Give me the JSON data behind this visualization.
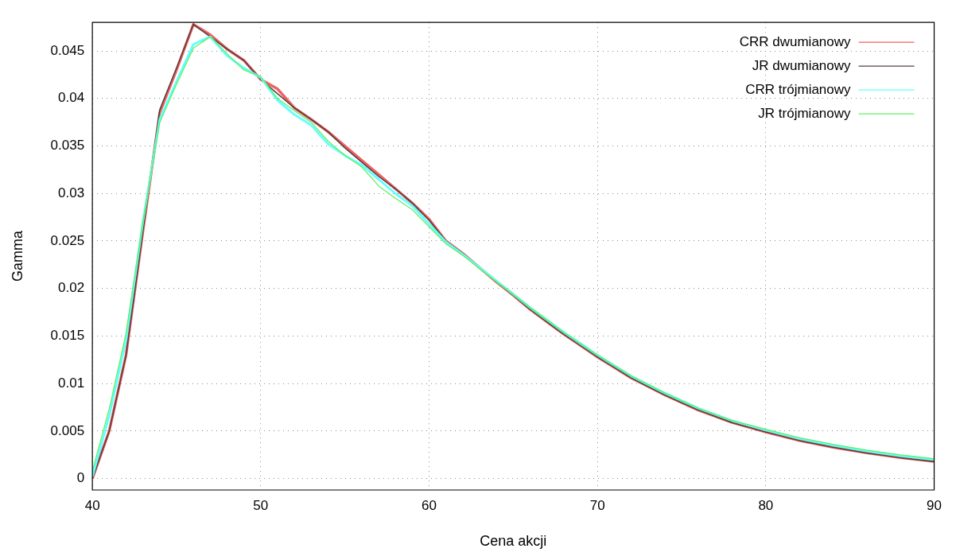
{
  "chart_data": {
    "type": "line",
    "xlabel": "Cena akcji",
    "ylabel": "Gamma",
    "xlim": [
      40,
      90
    ],
    "xticks": [
      40,
      50,
      60,
      70,
      80,
      90
    ],
    "ylim": [
      -0.0012,
      0.048
    ],
    "yticks": [
      0,
      0.005,
      0.01,
      0.015,
      0.02,
      0.025,
      0.03,
      0.035,
      0.04,
      0.045
    ],
    "grid": true,
    "legend": "top right",
    "marker": "none",
    "line_style": "solid",
    "series": [
      {
        "name": "CRR dwumianowy",
        "color": "#f06060",
        "x": [
          40,
          41,
          42,
          43,
          44,
          45,
          46,
          47,
          48,
          49,
          50,
          51,
          52,
          53,
          54,
          55,
          56,
          57,
          58,
          59,
          60,
          61,
          62,
          63,
          64,
          65,
          66,
          67,
          68,
          69,
          70,
          72,
          74,
          76,
          78,
          80,
          82,
          84,
          86,
          88,
          90
        ],
        "values": [
          0,
          0.005,
          0.013,
          0.026,
          0.0385,
          0.043,
          0.0478,
          0.0467,
          0.0452,
          0.044,
          0.042,
          0.041,
          0.039,
          0.0378,
          0.0365,
          0.035,
          0.0335,
          0.032,
          0.0305,
          0.029,
          0.0273,
          0.025,
          0.0237,
          0.0222,
          0.0207,
          0.0193,
          0.0178,
          0.0165,
          0.0152,
          0.014,
          0.0128,
          0.0106,
          0.0088,
          0.0072,
          0.0059,
          0.0049,
          0.004,
          0.0033,
          0.0027,
          0.0022,
          0.0018
        ]
      },
      {
        "name": "JR dwumianowy",
        "color": "#504040",
        "x": [
          40,
          41,
          42,
          43,
          44,
          45,
          46,
          47,
          48,
          49,
          50,
          51,
          52,
          53,
          54,
          55,
          56,
          57,
          58,
          59,
          60,
          61,
          62,
          63,
          64,
          65,
          66,
          67,
          68,
          69,
          70,
          72,
          74,
          76,
          78,
          80,
          82,
          84,
          86,
          88,
          90
        ],
        "values": [
          0,
          0.005,
          0.013,
          0.026,
          0.0388,
          0.0432,
          0.0478,
          0.0465,
          0.0452,
          0.044,
          0.042,
          0.0405,
          0.039,
          0.0378,
          0.0365,
          0.0348,
          0.0333,
          0.0318,
          0.0305,
          0.029,
          0.0272,
          0.025,
          0.0237,
          0.0222,
          0.0207,
          0.0193,
          0.0178,
          0.0165,
          0.0152,
          0.014,
          0.0128,
          0.0106,
          0.0088,
          0.0072,
          0.0059,
          0.0049,
          0.004,
          0.0033,
          0.0027,
          0.0022,
          0.0018
        ]
      },
      {
        "name": "CRR trójmianowy",
        "color": "#60ffff",
        "x": [
          40,
          41,
          42,
          43,
          44,
          45,
          46,
          47,
          48,
          49,
          50,
          51,
          52,
          53,
          54,
          55,
          56,
          57,
          58,
          59,
          60,
          61,
          62,
          63,
          64,
          65,
          66,
          67,
          68,
          69,
          70,
          72,
          74,
          76,
          78,
          80,
          82,
          84,
          86,
          88,
          90
        ],
        "values": [
          0.0002,
          0.0066,
          0.0146,
          0.027,
          0.0378,
          0.0418,
          0.0457,
          0.0465,
          0.0445,
          0.0432,
          0.0422,
          0.0398,
          0.0383,
          0.0372,
          0.0352,
          0.034,
          0.033,
          0.0315,
          0.03,
          0.0287,
          0.0268,
          0.0249,
          0.0236,
          0.0222,
          0.0208,
          0.0194,
          0.018,
          0.0167,
          0.0154,
          0.0142,
          0.013,
          0.0108,
          0.009,
          0.0074,
          0.0061,
          0.0051,
          0.0042,
          0.0035,
          0.0029,
          0.0024,
          0.002
        ]
      },
      {
        "name": "JR trójmianowy",
        "color": "#60f060",
        "x": [
          40,
          41,
          42,
          43,
          44,
          45,
          46,
          47,
          48,
          49,
          50,
          51,
          52,
          53,
          54,
          55,
          56,
          57,
          58,
          59,
          60,
          61,
          62,
          63,
          64,
          65,
          66,
          67,
          68,
          69,
          70,
          72,
          74,
          76,
          78,
          80,
          82,
          84,
          86,
          88,
          90
        ],
        "values": [
          0.0008,
          0.0073,
          0.0153,
          0.027,
          0.0375,
          0.0415,
          0.0453,
          0.0465,
          0.0447,
          0.043,
          0.0423,
          0.04,
          0.0387,
          0.0375,
          0.0355,
          0.034,
          0.0328,
          0.0308,
          0.0295,
          0.0283,
          0.0265,
          0.0247,
          0.0235,
          0.0221,
          0.0207,
          0.0194,
          0.018,
          0.0167,
          0.0154,
          0.0142,
          0.013,
          0.0108,
          0.009,
          0.0074,
          0.0061,
          0.0052,
          0.0043,
          0.0036,
          0.003,
          0.0025,
          0.0021
        ]
      }
    ]
  }
}
